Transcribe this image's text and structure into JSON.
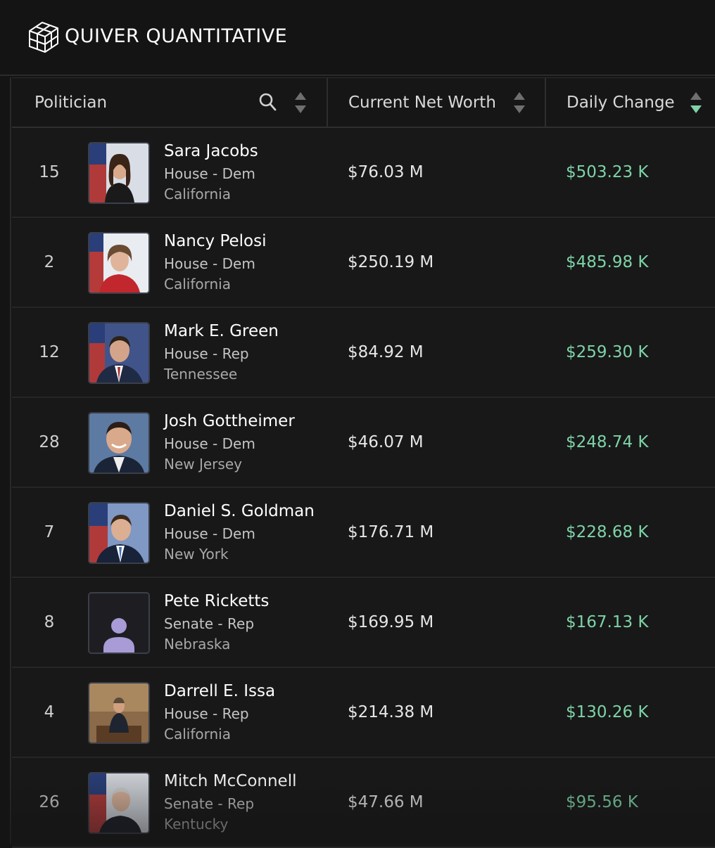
{
  "app": {
    "brand": "QUIVER QUANTITATIVE"
  },
  "columns": {
    "politician": "Politician",
    "net_worth": "Current Net Worth",
    "daily_change": "Daily Change"
  },
  "colors": {
    "positive": "#7ed3a8",
    "active_sort": "#7ed3a8",
    "background": "#141414"
  },
  "rows": [
    {
      "rank": "15",
      "name": "Sara Jacobs",
      "chamber": "House - Dem",
      "state": "California",
      "net_worth": "$76.03 M",
      "daily_change": "$503.23 K",
      "photo": "portrait-photo"
    },
    {
      "rank": "2",
      "name": "Nancy Pelosi",
      "chamber": "House - Dem",
      "state": "California",
      "net_worth": "$250.19 M",
      "daily_change": "$485.98 K",
      "photo": "portrait-photo"
    },
    {
      "rank": "12",
      "name": "Mark E. Green",
      "chamber": "House - Rep",
      "state": "Tennessee",
      "net_worth": "$84.92 M",
      "daily_change": "$259.30 K",
      "photo": "portrait-photo"
    },
    {
      "rank": "28",
      "name": "Josh Gottheimer",
      "chamber": "House - Dem",
      "state": "New Jersey",
      "net_worth": "$46.07 M",
      "daily_change": "$248.74 K",
      "photo": "portrait-photo"
    },
    {
      "rank": "7",
      "name": "Daniel S. Goldman",
      "chamber": "House - Dem",
      "state": "New York",
      "net_worth": "$176.71 M",
      "daily_change": "$228.68 K",
      "photo": "portrait-photo"
    },
    {
      "rank": "8",
      "name": "Pete Ricketts",
      "chamber": "Senate - Rep",
      "state": "Nebraska",
      "net_worth": "$169.95 M",
      "daily_change": "$167.13 K",
      "photo": "placeholder-avatar"
    },
    {
      "rank": "4",
      "name": "Darrell E. Issa",
      "chamber": "House - Rep",
      "state": "California",
      "net_worth": "$214.38 M",
      "daily_change": "$130.26 K",
      "photo": "portrait-photo"
    },
    {
      "rank": "26",
      "name": "Mitch McConnell",
      "chamber": "Senate - Rep",
      "state": "Kentucky",
      "net_worth": "$47.66 M",
      "daily_change": "$95.56 K",
      "photo": "portrait-photo"
    }
  ]
}
